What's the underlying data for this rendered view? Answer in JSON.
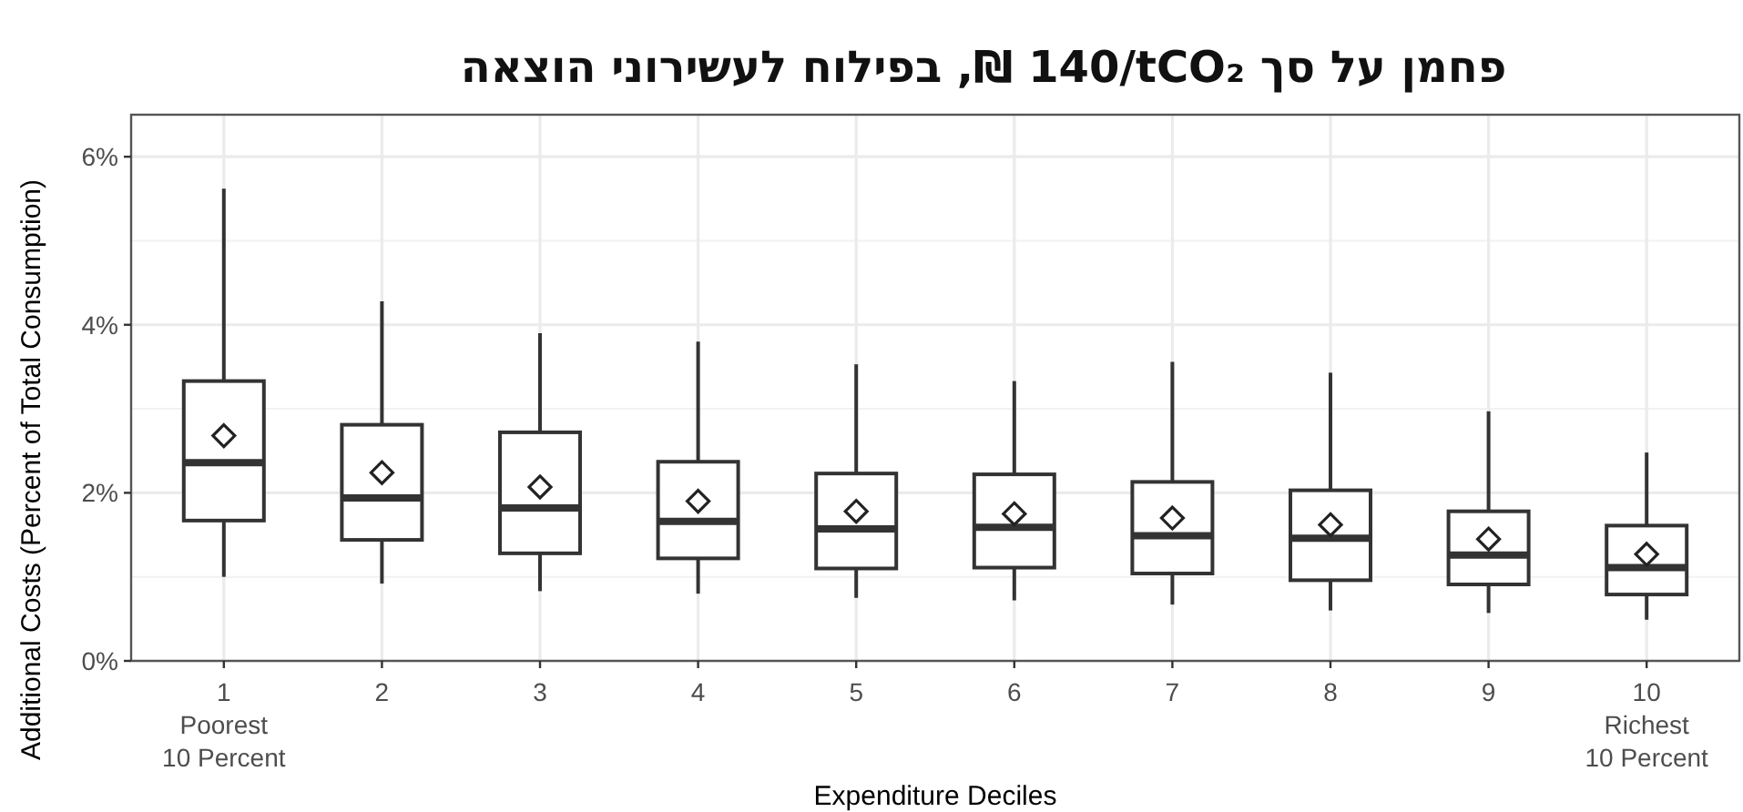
{
  "chart_data": {
    "type": "box",
    "title": "פחמן על סך 140/tCO₂ ₪, בפילוח לעשירוני הוצאה",
    "xlabel": "Expenditure Deciles",
    "ylabel": "Additional Costs (Percent of Total Consumption)",
    "categories": [
      "1\nPoorest\n10 Percent",
      "2",
      "3",
      "4",
      "5",
      "6",
      "7",
      "8",
      "9",
      "10\nRichest\n10 Percent"
    ],
    "boxes": [
      {
        "low": 1.0,
        "q1": 1.67,
        "median": 2.36,
        "q3": 3.33,
        "high": 5.62,
        "mean": 2.68
      },
      {
        "low": 0.92,
        "q1": 1.44,
        "median": 1.94,
        "q3": 2.81,
        "high": 4.28,
        "mean": 2.24
      },
      {
        "low": 0.83,
        "q1": 1.28,
        "median": 1.82,
        "q3": 2.72,
        "high": 3.9,
        "mean": 2.07
      },
      {
        "low": 0.8,
        "q1": 1.22,
        "median": 1.66,
        "q3": 2.37,
        "high": 3.8,
        "mean": 1.9
      },
      {
        "low": 0.75,
        "q1": 1.1,
        "median": 1.57,
        "q3": 2.23,
        "high": 3.53,
        "mean": 1.78
      },
      {
        "low": 0.72,
        "q1": 1.11,
        "median": 1.59,
        "q3": 2.22,
        "high": 3.33,
        "mean": 1.75
      },
      {
        "low": 0.67,
        "q1": 1.04,
        "median": 1.49,
        "q3": 2.13,
        "high": 3.56,
        "mean": 1.7
      },
      {
        "low": 0.6,
        "q1": 0.96,
        "median": 1.46,
        "q3": 2.03,
        "high": 3.43,
        "mean": 1.62
      },
      {
        "low": 0.57,
        "q1": 0.91,
        "median": 1.26,
        "q3": 1.78,
        "high": 2.97,
        "mean": 1.45
      },
      {
        "low": 0.49,
        "q1": 0.79,
        "median": 1.11,
        "q3": 1.61,
        "high": 2.48,
        "mean": 1.27
      }
    ],
    "ylim": [
      0,
      6.5
    ],
    "yticks": [
      {
        "value": 0,
        "label": "0%"
      },
      {
        "value": 2,
        "label": "2%"
      },
      {
        "value": 4,
        "label": "4%"
      },
      {
        "value": 6,
        "label": "6%"
      }
    ],
    "grid": true,
    "marker": "diamond",
    "color": "#333333"
  }
}
